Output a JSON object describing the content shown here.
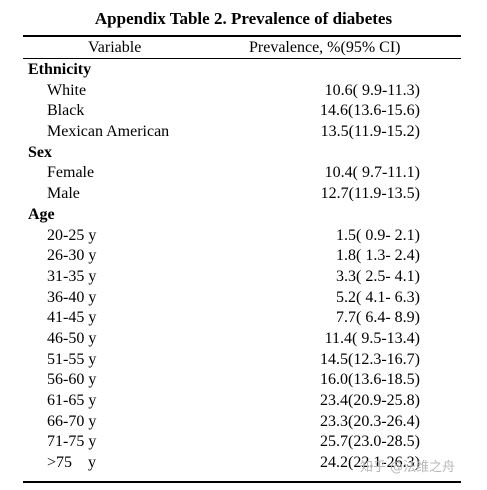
{
  "table": {
    "title": "Appendix Table 2. Prevalence of diabetes",
    "headers": {
      "variable": "Variable",
      "prevalence": "Prevalence, %(95% CI)"
    },
    "sections": [
      {
        "name": "Ethnicity",
        "rows": [
          {
            "label": "White",
            "value": "10.6( 9.9-11.3)"
          },
          {
            "label": "Black",
            "value": "14.6(13.6-15.6)"
          },
          {
            "label": "Mexican American",
            "value": "13.5(11.9-15.2)"
          }
        ]
      },
      {
        "name": "Sex",
        "rows": [
          {
            "label": "Female",
            "value": "10.4( 9.7-11.1)"
          },
          {
            "label": "Male",
            "value": "12.7(11.9-13.5)"
          }
        ]
      },
      {
        "name": "Age",
        "rows": [
          {
            "label": "20-25 y",
            "value": "1.5( 0.9- 2.1)"
          },
          {
            "label": "26-30 y",
            "value": "1.8( 1.3- 2.4)"
          },
          {
            "label": "31-35 y",
            "value": "3.3( 2.5- 4.1)"
          },
          {
            "label": "36-40 y",
            "value": "5.2( 4.1- 6.3)"
          },
          {
            "label": "41-45 y",
            "value": "7.7( 6.4- 8.9)"
          },
          {
            "label": "46-50 y",
            "value": "11.4( 9.5-13.4)"
          },
          {
            "label": "51-55 y",
            "value": "14.5(12.3-16.7)"
          },
          {
            "label": "56-60 y",
            "value": "16.0(13.6-18.5)"
          },
          {
            "label": "61-65 y",
            "value": "23.4(20.9-25.8)"
          },
          {
            "label": "66-70 y",
            "value": "23.3(20.3-26.4)"
          },
          {
            "label": "71-75 y",
            "value": "25.7(23.0-28.5)"
          },
          {
            "label": ">75    y",
            "value": "24.2(22.1-26.3)"
          }
        ]
      }
    ]
  },
  "watermark": "知乎 @法维之舟"
}
